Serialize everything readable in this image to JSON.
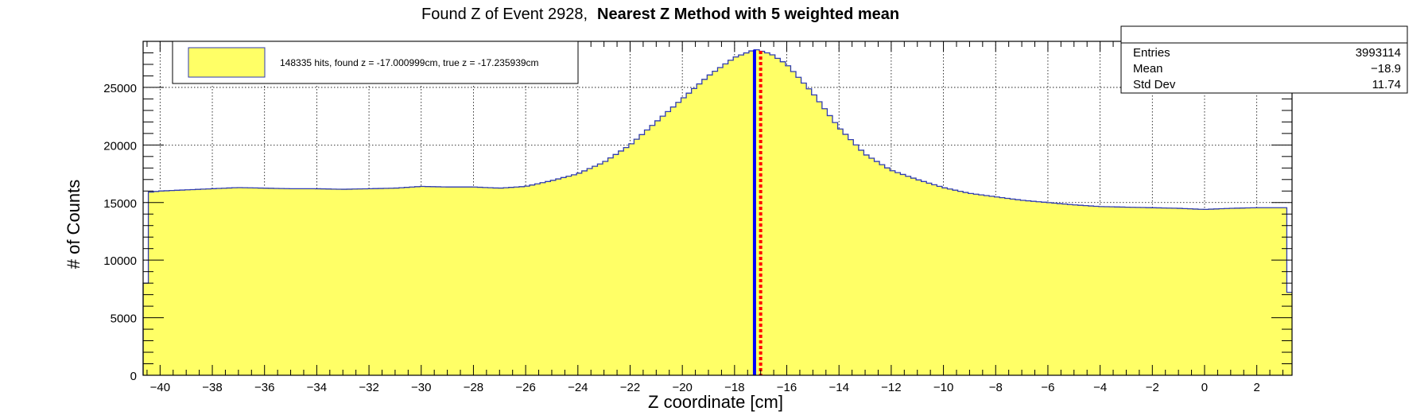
{
  "title_prefix": "Found Z of Event 2928,",
  "title_bold": "Nearest Z Method with 5 weighted mean",
  "legend": {
    "entry": "148335 hits, found z = -17.000999cm, true z = -17.235939cm"
  },
  "stats": {
    "rows": [
      {
        "label": "Entries",
        "value": "3993114"
      },
      {
        "label": "Mean",
        "value": "−18.9"
      },
      {
        "label": "Std Dev",
        "value": "11.74"
      }
    ]
  },
  "colors": {
    "fill": "#ffff66",
    "outline": "#2f3bb0",
    "true_z_line": "#0000ff",
    "found_z_line": "#ff0000",
    "grid": "#000000"
  },
  "chart_data": {
    "type": "histogram",
    "xlabel": "Z coordinate [cm]",
    "ylabel": "# of Counts",
    "xlim": [
      -40.65,
      3.35
    ],
    "ylim": [
      0,
      29000
    ],
    "grid": true,
    "legend_position": "top-left",
    "stats_position": "top-right",
    "x_ticks": [
      -40,
      -38,
      -36,
      -34,
      -32,
      -30,
      -28,
      -26,
      -24,
      -22,
      -20,
      -18,
      -16,
      -14,
      -12,
      -10,
      -8,
      -6,
      -4,
      -2,
      0,
      2
    ],
    "x_tick_labels": [
      "−40",
      "−38",
      "−36",
      "−34",
      "−32",
      "−30",
      "−28",
      "−26",
      "−24",
      "−22",
      "−20",
      "−18",
      "−16",
      "−14",
      "−12",
      "−10",
      "−8",
      "−6",
      "−4",
      "−2",
      "0",
      "2"
    ],
    "y_ticks": [
      0,
      5000,
      10000,
      15000,
      20000,
      25000
    ],
    "y_tick_labels": [
      "0",
      "5000",
      "10000",
      "15000",
      "20000",
      "25000"
    ],
    "bin_width": 0.2,
    "histogram_profile": [
      [
        -40.6,
        8000
      ],
      [
        -40.4,
        15900
      ],
      [
        -40.0,
        16000
      ],
      [
        -39.0,
        16100
      ],
      [
        -38.0,
        16200
      ],
      [
        -37.0,
        16300
      ],
      [
        -36.0,
        16250
      ],
      [
        -35.0,
        16200
      ],
      [
        -34.0,
        16200
      ],
      [
        -33.0,
        16150
      ],
      [
        -32.0,
        16200
      ],
      [
        -31.0,
        16250
      ],
      [
        -30.0,
        16400
      ],
      [
        -29.0,
        16350
      ],
      [
        -28.0,
        16350
      ],
      [
        -27.0,
        16250
      ],
      [
        -26.0,
        16400
      ],
      [
        -25.0,
        16900
      ],
      [
        -24.0,
        17500
      ],
      [
        -23.0,
        18500
      ],
      [
        -22.0,
        20000
      ],
      [
        -21.0,
        22000
      ],
      [
        -20.0,
        24000
      ],
      [
        -19.0,
        26000
      ],
      [
        -18.0,
        27600
      ],
      [
        -17.2,
        28300
      ],
      [
        -16.6,
        27900
      ],
      [
        -16.0,
        27000
      ],
      [
        -15.0,
        24500
      ],
      [
        -14.0,
        21500
      ],
      [
        -13.0,
        19200
      ],
      [
        -12.0,
        17800
      ],
      [
        -11.0,
        17000
      ],
      [
        -10.0,
        16300
      ],
      [
        -9.0,
        15800
      ],
      [
        -8.0,
        15500
      ],
      [
        -7.0,
        15200
      ],
      [
        -6.0,
        15000
      ],
      [
        -5.0,
        14800
      ],
      [
        -4.0,
        14650
      ],
      [
        -3.0,
        14600
      ],
      [
        -2.0,
        14550
      ],
      [
        -1.0,
        14500
      ],
      [
        0.0,
        14400
      ],
      [
        1.0,
        14500
      ],
      [
        2.0,
        14550
      ],
      [
        3.1,
        14550
      ],
      [
        3.2,
        7200
      ]
    ],
    "vertical_lines": [
      {
        "x": -17.235939,
        "style": "solid",
        "color": "#0000ff"
      },
      {
        "x": -17.000999,
        "style": "dotted",
        "color": "#ff0000"
      }
    ]
  }
}
